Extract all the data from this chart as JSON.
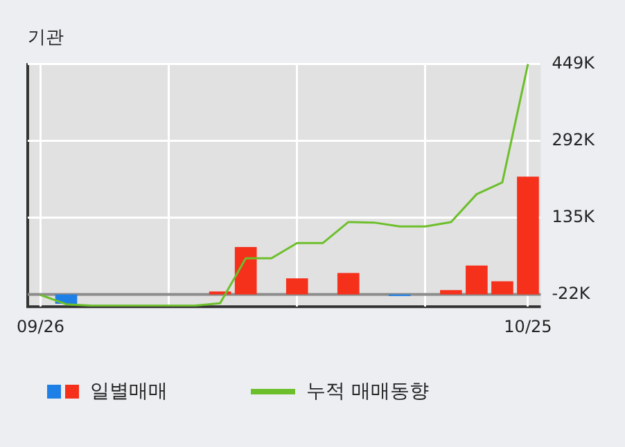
{
  "chart_data": {
    "type": "bar",
    "title": "기관",
    "categories": [
      "09/26",
      null,
      null,
      null,
      null,
      null,
      null,
      null,
      null,
      null,
      null,
      null,
      null,
      null,
      null,
      null,
      null,
      null,
      null,
      "10/25"
    ],
    "series": [
      {
        "name": "일별매매",
        "base": [
          null,
          -22,
          null,
          null,
          null,
          null,
          null,
          -22,
          -22,
          null,
          -22,
          null,
          -22,
          null,
          -22,
          null,
          -22,
          -22,
          -22,
          -22
        ],
        "values": [
          null,
          -19,
          null,
          null,
          null,
          null,
          null,
          6,
          97,
          null,
          33,
          null,
          44,
          null,
          -3,
          null,
          9,
          59,
          27,
          241
        ],
        "colors": [
          "#f5311c",
          "#1e7fe6",
          "#f5311c",
          "#f5311c",
          "#f5311c",
          "#f5311c",
          "#f5311c",
          "#f5311c",
          "#f5311c",
          "#f5311c",
          "#f5311c",
          "#f5311c",
          "#f5311c",
          "#f5311c",
          "#1e7fe6",
          "#f5311c",
          "#f5311c",
          "#f5311c",
          "#f5311c",
          "#f5311c"
        ]
      },
      {
        "name": "누적 매매동향",
        "type": "line",
        "color": "#6cbf2a",
        "values": [
          -23,
          -42,
          -45,
          -45,
          -45,
          -45,
          -45,
          -40,
          52,
          52,
          83,
          83,
          126,
          125,
          117,
          117,
          126,
          183,
          207,
          449
        ]
      }
    ],
    "ylim": [
      -47,
      451
    ],
    "yticks": [
      {
        "value": -22,
        "label": "-22K"
      },
      {
        "value": 135,
        "label": "135K"
      },
      {
        "value": 292,
        "label": "292K"
      },
      {
        "value": 449,
        "label": "449K"
      }
    ],
    "ref_lines": [
      {
        "axis": "y",
        "value": -22,
        "color": "#8c8c8c"
      }
    ],
    "grid": true,
    "legend": "bottom",
    "marker": "none",
    "line_style": "solid"
  }
}
